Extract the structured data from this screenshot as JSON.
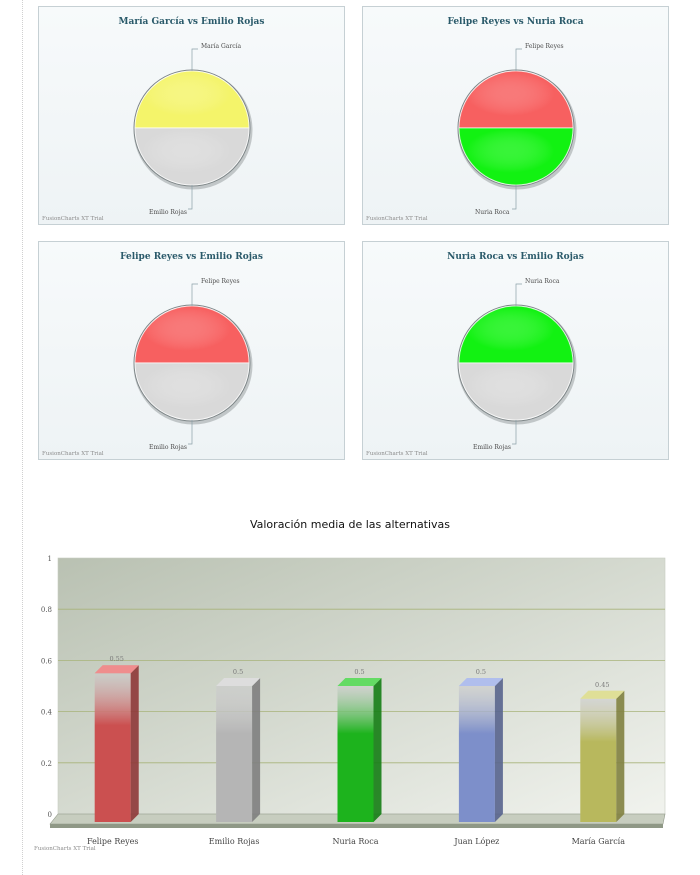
{
  "watermark": "FusionCharts XT Trial",
  "colors": {
    "yellow": "#f4f46a",
    "grey": "#d9d9d9",
    "red": "#f76060",
    "green": "#12f212",
    "blue": "#a8b8ef",
    "olive": "#d2d26a"
  },
  "chart_data": [
    {
      "type": "pie",
      "title": "María García vs Emilio Rojas",
      "slices": [
        {
          "label": "María García",
          "value": 0.5,
          "color": "#f4f46a"
        },
        {
          "label": "Emilio Rojas",
          "value": 0.5,
          "color": "#d9d9d9"
        }
      ]
    },
    {
      "type": "pie",
      "title": "Felipe Reyes vs Nuria Roca",
      "slices": [
        {
          "label": "Felipe Reyes",
          "value": 0.5,
          "color": "#f76060"
        },
        {
          "label": "Nuria Roca",
          "value": 0.5,
          "color": "#12f212"
        }
      ]
    },
    {
      "type": "pie",
      "title": "Felipe Reyes vs Emilio Rojas",
      "slices": [
        {
          "label": "Felipe Reyes",
          "value": 0.5,
          "color": "#f76060"
        },
        {
          "label": "Emilio Rojas",
          "value": 0.5,
          "color": "#d9d9d9"
        }
      ]
    },
    {
      "type": "pie",
      "title": "Nuria Roca vs Emilio Rojas",
      "slices": [
        {
          "label": "Nuria Roca",
          "value": 0.5,
          "color": "#12f212"
        },
        {
          "label": "Emilio Rojas",
          "value": 0.5,
          "color": "#d9d9d9"
        }
      ]
    },
    {
      "type": "bar",
      "title": "Valoración media de las alternativas",
      "categories": [
        "Felipe Reyes",
        "Emilio Rojas",
        "Nuria Roca",
        "Juan López",
        "María García"
      ],
      "values": [
        0.55,
        0.5,
        0.5,
        0.5,
        0.45
      ],
      "value_labels": [
        "0.55",
        "0.5",
        "0.5",
        "0.5",
        "0.45"
      ],
      "bar_colors": [
        "#e85c5c",
        "#cfcfcf",
        "#22cc22",
        "#8fa3e6",
        "#d2d26a"
      ],
      "ylim": [
        0,
        1
      ],
      "yticks": [
        "0",
        "0.2",
        "0.4",
        "0.6",
        "0.8",
        "1"
      ],
      "ytick_values": [
        0,
        0.2,
        0.4,
        0.6,
        0.8,
        1
      ],
      "grid": true
    }
  ]
}
